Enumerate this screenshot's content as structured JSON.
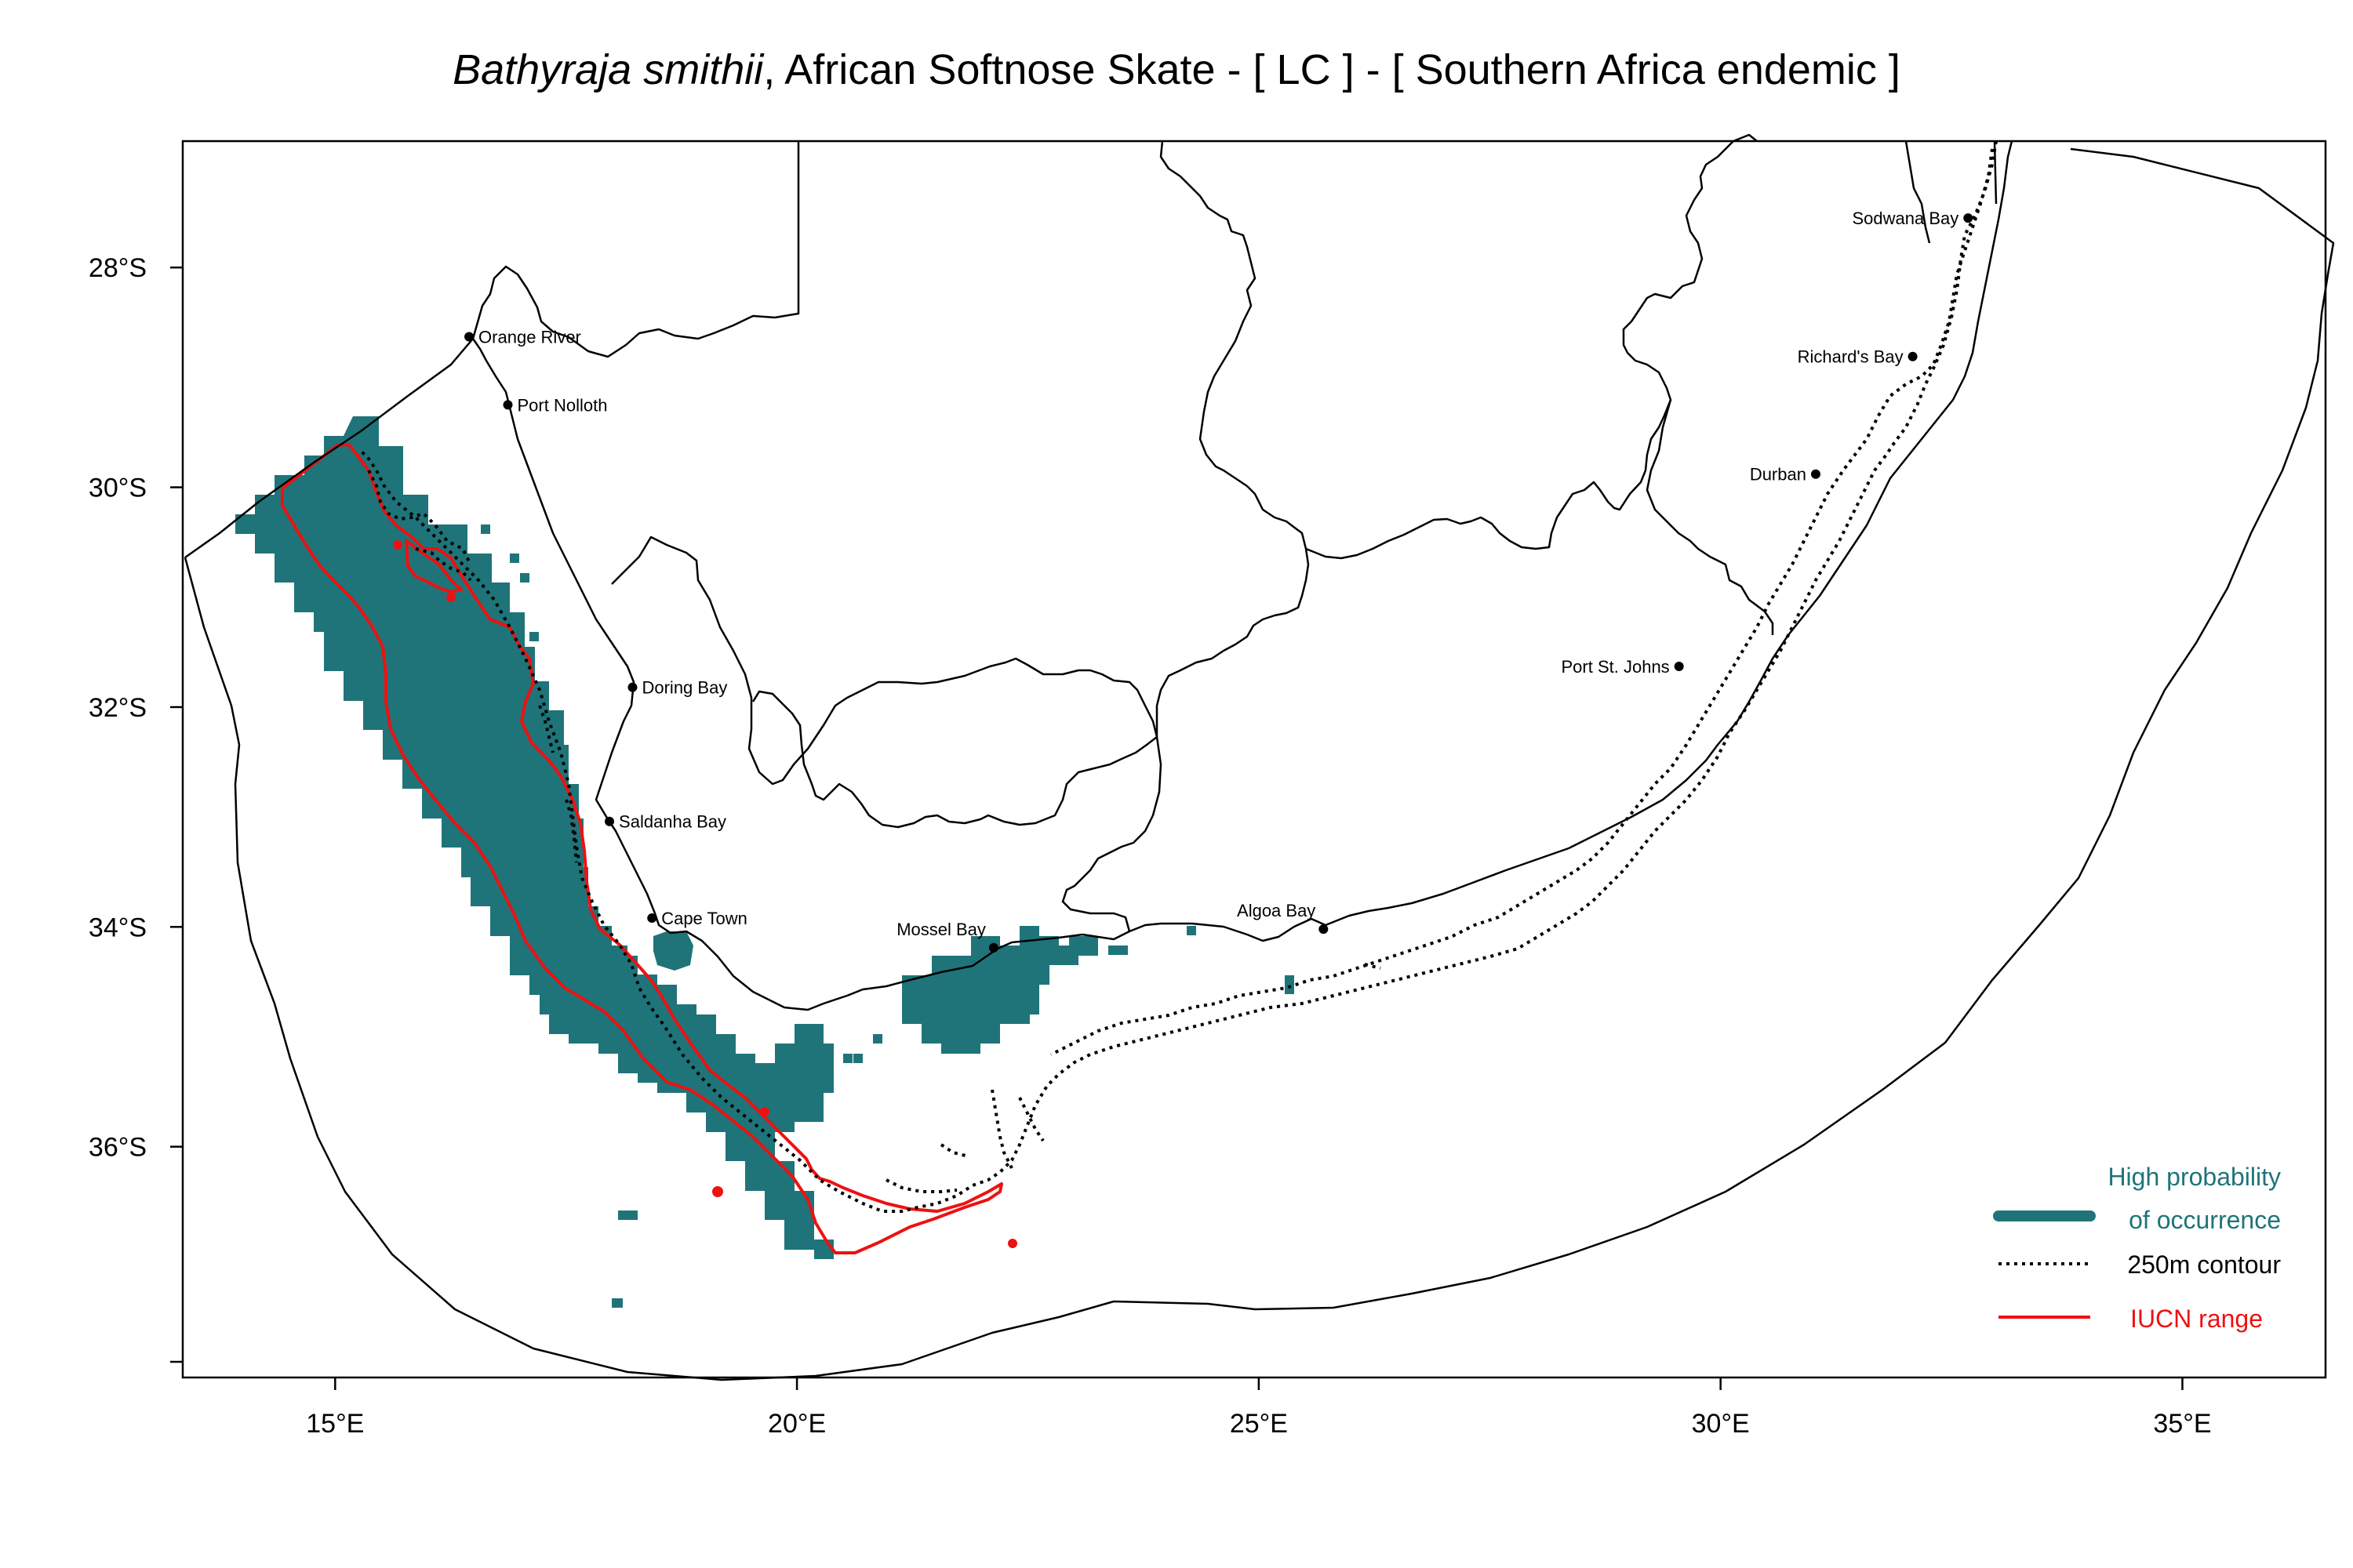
{
  "title": {
    "species": "Bathyraja smithii",
    "rest": ", African Softnose Skate  - [ LC ] - [ Southern Africa endemic ]"
  },
  "axes": {
    "lat_ticks": [
      {
        "value": -28,
        "label": "28°S"
      },
      {
        "value": -30,
        "label": "30°S"
      },
      {
        "value": -32,
        "label": "32°S"
      },
      {
        "value": -34,
        "label": "34°S"
      },
      {
        "value": -36,
        "label": "36°S"
      }
    ],
    "lon_ticks": [
      {
        "value": 15,
        "label": "15°E"
      },
      {
        "value": 20,
        "label": "20°E"
      },
      {
        "value": 25,
        "label": "25°E"
      },
      {
        "value": 30,
        "label": "30°E"
      },
      {
        "value": 35,
        "label": "35°E"
      }
    ],
    "lon_range": [
      13.35,
      36.55
    ],
    "lat_range": [
      -38.1,
      -26.85
    ]
  },
  "places": [
    {
      "name": "Orange River",
      "lon": 16.45,
      "lat": -28.63,
      "anchor": "right"
    },
    {
      "name": "Port Nolloth",
      "lon": 16.87,
      "lat": -29.25,
      "anchor": "right"
    },
    {
      "name": "Doring Bay",
      "lon": 18.22,
      "lat": -31.82,
      "anchor": "right"
    },
    {
      "name": "Saldanha Bay",
      "lon": 17.97,
      "lat": -33.04,
      "anchor": "right"
    },
    {
      "name": "Cape Town",
      "lon": 18.43,
      "lat": -33.92,
      "anchor": "right"
    },
    {
      "name": "Mossel Bay",
      "lon": 22.13,
      "lat": -34.19,
      "anchor": "left-up"
    },
    {
      "name": "Algoa Bay",
      "lon": 25.7,
      "lat": -34.02,
      "anchor": "left-up"
    },
    {
      "name": "Port St. Johns",
      "lon": 29.55,
      "lat": -31.63,
      "anchor": "left"
    },
    {
      "name": "Durban",
      "lon": 31.03,
      "lat": -29.88,
      "anchor": "left"
    },
    {
      "name": "Richard's Bay",
      "lon": 32.08,
      "lat": -28.81,
      "anchor": "left"
    },
    {
      "name": "Sodwana Bay",
      "lon": 32.68,
      "lat": -27.55,
      "anchor": "left"
    }
  ],
  "legend": {
    "high_probability": "High probability",
    "of_occurrence": "of occurrence",
    "contour": "250m contour",
    "iucn": "IUCN range"
  },
  "colors": {
    "occurrence": "#1f7479",
    "iucn": "#ee1111",
    "land_border": "#000000"
  }
}
